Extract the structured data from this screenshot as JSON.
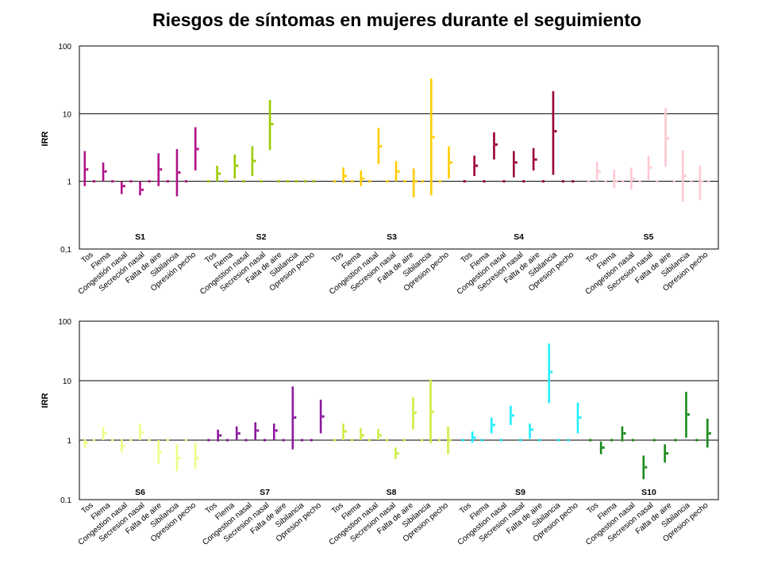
{
  "chart_data": {
    "type": "errorbar",
    "title": "Riesgos de síntomas en mujeres durante el seguimiento",
    "y_scale": "log",
    "panels": [
      {
        "ylabel": "IRR",
        "y_ticks": [
          "0,1",
          "1",
          "10",
          "100"
        ],
        "ylim": [
          0.1,
          100
        ],
        "reference_lines": [
          1,
          10
        ],
        "groups": [
          {
            "name": "S1",
            "color": "#b0128a",
            "categories": [
              "Tos",
              "Flema",
              "Congestión nasal",
              "Secreción nasal",
              "Falta de aire",
              "Sibilancia",
              "Opresión pecho"
            ],
            "points": [
              [
                1.5,
                0.85,
                2.8
              ],
              [
                1.0,
                1.0,
                1.0
              ],
              [
                1.4,
                1.0,
                1.9
              ],
              [
                1.0,
                1.0,
                1.0
              ],
              [
                0.85,
                0.65,
                1.0
              ],
              [
                1.0,
                1.0,
                1.0
              ],
              [
                0.75,
                0.62,
                1.0
              ],
              [
                1.0,
                1.0,
                1.0
              ],
              [
                1.5,
                0.85,
                2.6
              ],
              [
                1.0,
                1.0,
                1.0
              ],
              [
                1.35,
                0.6,
                3.0
              ],
              [
                1.0,
                1.0,
                1.0
              ],
              [
                3.0,
                1.45,
                6.3
              ]
            ]
          },
          {
            "name": "S2",
            "color": "#99cc00",
            "categories": [
              "Tos",
              "Flema",
              "Congestion nasal",
              "Secresion nasal",
              "Falta de aire",
              "Sibilancia",
              "Opresion pecho"
            ],
            "points": [
              [
                1.0,
                1.0,
                1.0
              ],
              [
                1.3,
                1.0,
                1.7
              ],
              [
                1.0,
                1.0,
                1.0
              ],
              [
                1.7,
                1.1,
                2.5
              ],
              [
                1.0,
                1.0,
                1.0
              ],
              [
                2.0,
                1.2,
                3.3
              ],
              [
                1.0,
                1.0,
                1.0
              ],
              [
                7.0,
                2.9,
                16.0
              ],
              [
                1.0,
                1.0,
                1.0
              ],
              [
                1.0,
                1.0,
                1.0
              ],
              [
                1.0,
                1.0,
                1.0
              ],
              [
                1.0,
                1.0,
                1.0
              ],
              [
                1.0,
                1.0,
                1.0
              ]
            ]
          },
          {
            "name": "S3",
            "color": "#ffcc00",
            "categories": [
              "Tos",
              "Flema",
              "Congestion nasal",
              "Secresion nasal",
              "Falta de aire",
              "Sibilancia",
              "Opresion pecho"
            ],
            "points": [
              [
                1.0,
                1.0,
                1.0
              ],
              [
                1.2,
                0.95,
                1.6
              ],
              [
                1.0,
                1.0,
                1.0
              ],
              [
                1.1,
                0.85,
                1.45
              ],
              [
                1.0,
                1.0,
                1.0
              ],
              [
                3.3,
                1.8,
                6.2
              ],
              [
                1.0,
                1.0,
                1.0
              ],
              [
                1.4,
                1.0,
                2.0
              ],
              [
                1.0,
                1.0,
                1.0
              ],
              [
                1.0,
                0.58,
                1.55
              ],
              [
                1.0,
                1.0,
                1.0
              ],
              [
                4.5,
                0.62,
                33.0
              ],
              [
                1.0,
                1.0,
                1.0
              ],
              [
                1.9,
                1.1,
                3.3
              ]
            ]
          },
          {
            "name": "S4",
            "color": "#990033",
            "categories": [
              "Tos",
              "Flema",
              "Congestion nasal",
              "Secresion nasal",
              "Falta de aire",
              "Sibilancia",
              "Opresion pecho"
            ],
            "points": [
              [
                1.0,
                1.0,
                1.0
              ],
              [
                1.7,
                1.2,
                2.4
              ],
              [
                1.0,
                1.0,
                1.0
              ],
              [
                3.5,
                2.1,
                5.3
              ],
              [
                1.0,
                1.0,
                1.0
              ],
              [
                1.9,
                1.15,
                2.8
              ],
              [
                1.0,
                1.0,
                1.0
              ],
              [
                2.1,
                1.45,
                3.1
              ],
              [
                1.0,
                1.0,
                1.0
              ],
              [
                5.5,
                1.25,
                21.5
              ],
              [
                1.0,
                1.0,
                1.0
              ],
              [
                1.0,
                1.0,
                1.0
              ]
            ]
          },
          {
            "name": "S5",
            "color": "#ffc8d2",
            "categories": [
              "Tos",
              "Flema",
              "Congestion nasal",
              "Secresion nasal",
              "Falta de aire",
              "Sibilancia",
              "Opresion pecho"
            ],
            "points": [
              [
                1.0,
                1.0,
                1.0
              ],
              [
                1.4,
                1.0,
                1.95
              ],
              [
                1.0,
                1.0,
                1.0
              ],
              [
                1.0,
                0.8,
                1.5
              ],
              [
                1.0,
                1.0,
                1.0
              ],
              [
                1.1,
                0.75,
                1.6
              ],
              [
                1.0,
                1.0,
                1.0
              ],
              [
                1.6,
                1.05,
                2.4
              ],
              [
                1.0,
                1.0,
                1.0
              ],
              [
                4.3,
                1.65,
                12.0
              ],
              [
                1.0,
                1.0,
                1.0
              ],
              [
                1.2,
                0.5,
                2.9
              ],
              [
                1.0,
                1.0,
                1.0
              ],
              [
                1.0,
                0.53,
                1.7
              ],
              [
                1.0,
                1.0,
                1.0
              ]
            ]
          }
        ]
      },
      {
        "ylabel": "IRR",
        "y_ticks": [
          "0.1",
          "1",
          "10",
          "100"
        ],
        "ylim": [
          0.1,
          100
        ],
        "reference_lines": [
          1,
          10
        ],
        "groups": [
          {
            "name": "S6",
            "color": "#eeff88",
            "categories": [
              "Tos",
              "Flema",
              "Congestion nasal",
              "Secresion nasal",
              "Falta de aire",
              "Sibilancia",
              "Opresion pecho"
            ],
            "points": [
              [
                0.9,
                0.75,
                1.05
              ],
              [
                1.0,
                1.0,
                1.0
              ],
              [
                1.3,
                1.0,
                1.65
              ],
              [
                1.0,
                1.0,
                1.0
              ],
              [
                0.8,
                0.62,
                1.05
              ],
              [
                1.0,
                1.0,
                1.0
              ],
              [
                1.35,
                1.0,
                1.9
              ],
              [
                1.0,
                1.0,
                1.0
              ],
              [
                0.62,
                0.4,
                1.0
              ],
              [
                1.0,
                1.0,
                1.0
              ],
              [
                0.5,
                0.3,
                0.85
              ],
              [
                1.0,
                1.0,
                1.0
              ],
              [
                0.5,
                0.33,
                0.9
              ]
            ]
          },
          {
            "name": "S7",
            "color": "#8b1a9e",
            "categories": [
              "Tos",
              "Flema",
              "Congestion nasal",
              "Secresion nasal",
              "Falta de aire",
              "Sibilancia",
              "Opresion pecho"
            ],
            "points": [
              [
                1.0,
                1.0,
                1.0
              ],
              [
                1.2,
                0.95,
                1.5
              ],
              [
                1.0,
                1.0,
                1.0
              ],
              [
                1.3,
                1.0,
                1.7
              ],
              [
                1.0,
                1.0,
                1.0
              ],
              [
                1.45,
                1.0,
                2.0
              ],
              [
                1.0,
                1.0,
                1.0
              ],
              [
                1.45,
                1.0,
                1.9
              ],
              [
                1.0,
                1.0,
                1.0
              ],
              [
                2.4,
                0.7,
                8.0
              ],
              [
                1.0,
                1.0,
                1.0
              ],
              [
                1.0,
                1.0,
                1.0
              ],
              [
                2.5,
                1.3,
                4.8
              ]
            ]
          },
          {
            "name": "S8",
            "color": "#ccee44",
            "categories": [
              "Tos",
              "Flema",
              "Congestion nasal",
              "Secresion nasal",
              "Falta de aire",
              "Sibilancia",
              "Opresion pecho"
            ],
            "points": [
              [
                1.0,
                1.0,
                1.0
              ],
              [
                1.4,
                1.0,
                1.9
              ],
              [
                1.0,
                1.0,
                1.0
              ],
              [
                1.2,
                1.0,
                1.6
              ],
              [
                1.0,
                1.0,
                1.0
              ],
              [
                1.2,
                1.0,
                1.55
              ],
              [
                1.0,
                1.0,
                1.0
              ],
              [
                0.6,
                0.48,
                0.75
              ],
              [
                1.0,
                1.0,
                1.0
              ],
              [
                2.9,
                1.5,
                5.3
              ],
              [
                1.0,
                1.0,
                1.0
              ],
              [
                3.0,
                0.88,
                10.5
              ],
              [
                1.0,
                1.0,
                1.0
              ],
              [
                1.0,
                0.58,
                1.7
              ]
            ]
          },
          {
            "name": "S9",
            "color": "#22eeff",
            "categories": [
              "Tos",
              "Flema",
              "Congestion nasal",
              "Secresion nasal",
              "Falta de aire",
              "Sibilancia",
              "Opresion pecho"
            ],
            "points": [
              [
                1.0,
                1.0,
                1.0
              ],
              [
                1.1,
                0.9,
                1.4
              ],
              [
                1.0,
                1.0,
                1.0
              ],
              [
                1.8,
                1.3,
                2.4
              ],
              [
                1.0,
                1.0,
                1.0
              ],
              [
                2.6,
                1.8,
                3.8
              ],
              [
                1.0,
                1.0,
                1.0
              ],
              [
                1.5,
                1.05,
                1.9
              ],
              [
                1.0,
                1.0,
                1.0
              ],
              [
                14.0,
                4.2,
                42.0
              ],
              [
                1.0,
                1.0,
                1.0
              ],
              [
                1.0,
                1.0,
                1.0
              ],
              [
                2.4,
                1.3,
                4.3
              ]
            ]
          },
          {
            "name": "S10",
            "color": "#1a8a1a",
            "categories": [
              "Tos",
              "Flema",
              "Congestion nasal",
              "Secresion nasal",
              "Falta de aire",
              "Sibilancia",
              "Opresion pecho"
            ],
            "points": [
              [
                1.0,
                1.0,
                1.0
              ],
              [
                0.75,
                0.58,
                0.95
              ],
              [
                1.0,
                1.0,
                1.0
              ],
              [
                1.3,
                0.95,
                1.7
              ],
              [
                1.0,
                1.0,
                1.0
              ],
              [
                0.35,
                0.22,
                0.55
              ],
              [
                1.0,
                1.0,
                1.0
              ],
              [
                0.6,
                0.42,
                0.85
              ],
              [
                1.0,
                1.0,
                1.0
              ],
              [
                2.7,
                1.1,
                6.5
              ],
              [
                1.0,
                1.0,
                1.0
              ],
              [
                1.3,
                0.75,
                2.3
              ]
            ]
          }
        ]
      }
    ]
  }
}
